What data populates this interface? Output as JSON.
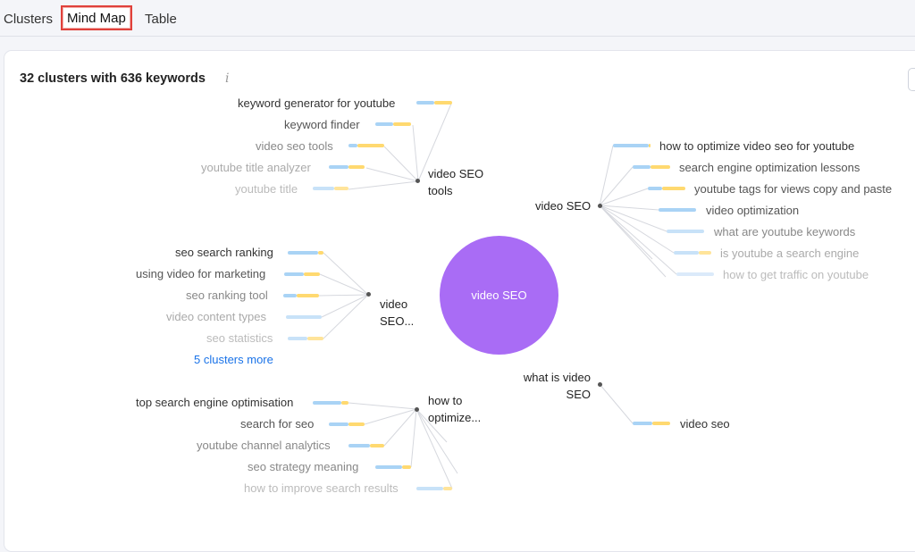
{
  "tabs": [
    "Clusters",
    "Mind Map",
    "Table"
  ],
  "header": {
    "title": "32 clusters with 636 keywords",
    "info": "i"
  },
  "center": "video SEO",
  "clusters": {
    "tools": {
      "hub": [
        "video SEO",
        "tools"
      ],
      "keywords": [
        "keyword generator for youtube",
        "keyword finder",
        "video seo tools",
        "youtube title analyzer",
        "youtube title"
      ]
    },
    "ranking": {
      "hub": [
        "video",
        "SEO..."
      ],
      "keywords": [
        "seo search ranking",
        "using video for marketing",
        "seo ranking tool",
        "video content types",
        "seo statistics"
      ],
      "more": "5 clusters more"
    },
    "optimize": {
      "hub": [
        "how to",
        "optimize..."
      ],
      "keywords": [
        "top search engine optimisation",
        "search for seo",
        "youtube channel analytics",
        "seo strategy meaning",
        "how to improve search results"
      ]
    },
    "main": {
      "hub": [
        "video SEO"
      ],
      "keywords": [
        "how to optimize video seo for youtube",
        "search engine optimization lessons",
        "youtube tags for views copy and paste",
        "video optimization",
        "what are youtube keywords",
        "is youtube a search engine",
        "how to get traffic on youtube"
      ]
    },
    "whatis": {
      "hub": [
        "what is video",
        "SEO"
      ],
      "keywords": [
        "video seo"
      ]
    }
  },
  "colors": {
    "center": "#a96cf5",
    "bar_blue": "#a9d3f5",
    "bar_yellow": "#ffd970",
    "accent_tab": "#e0413b",
    "link": "#1a73e8"
  }
}
